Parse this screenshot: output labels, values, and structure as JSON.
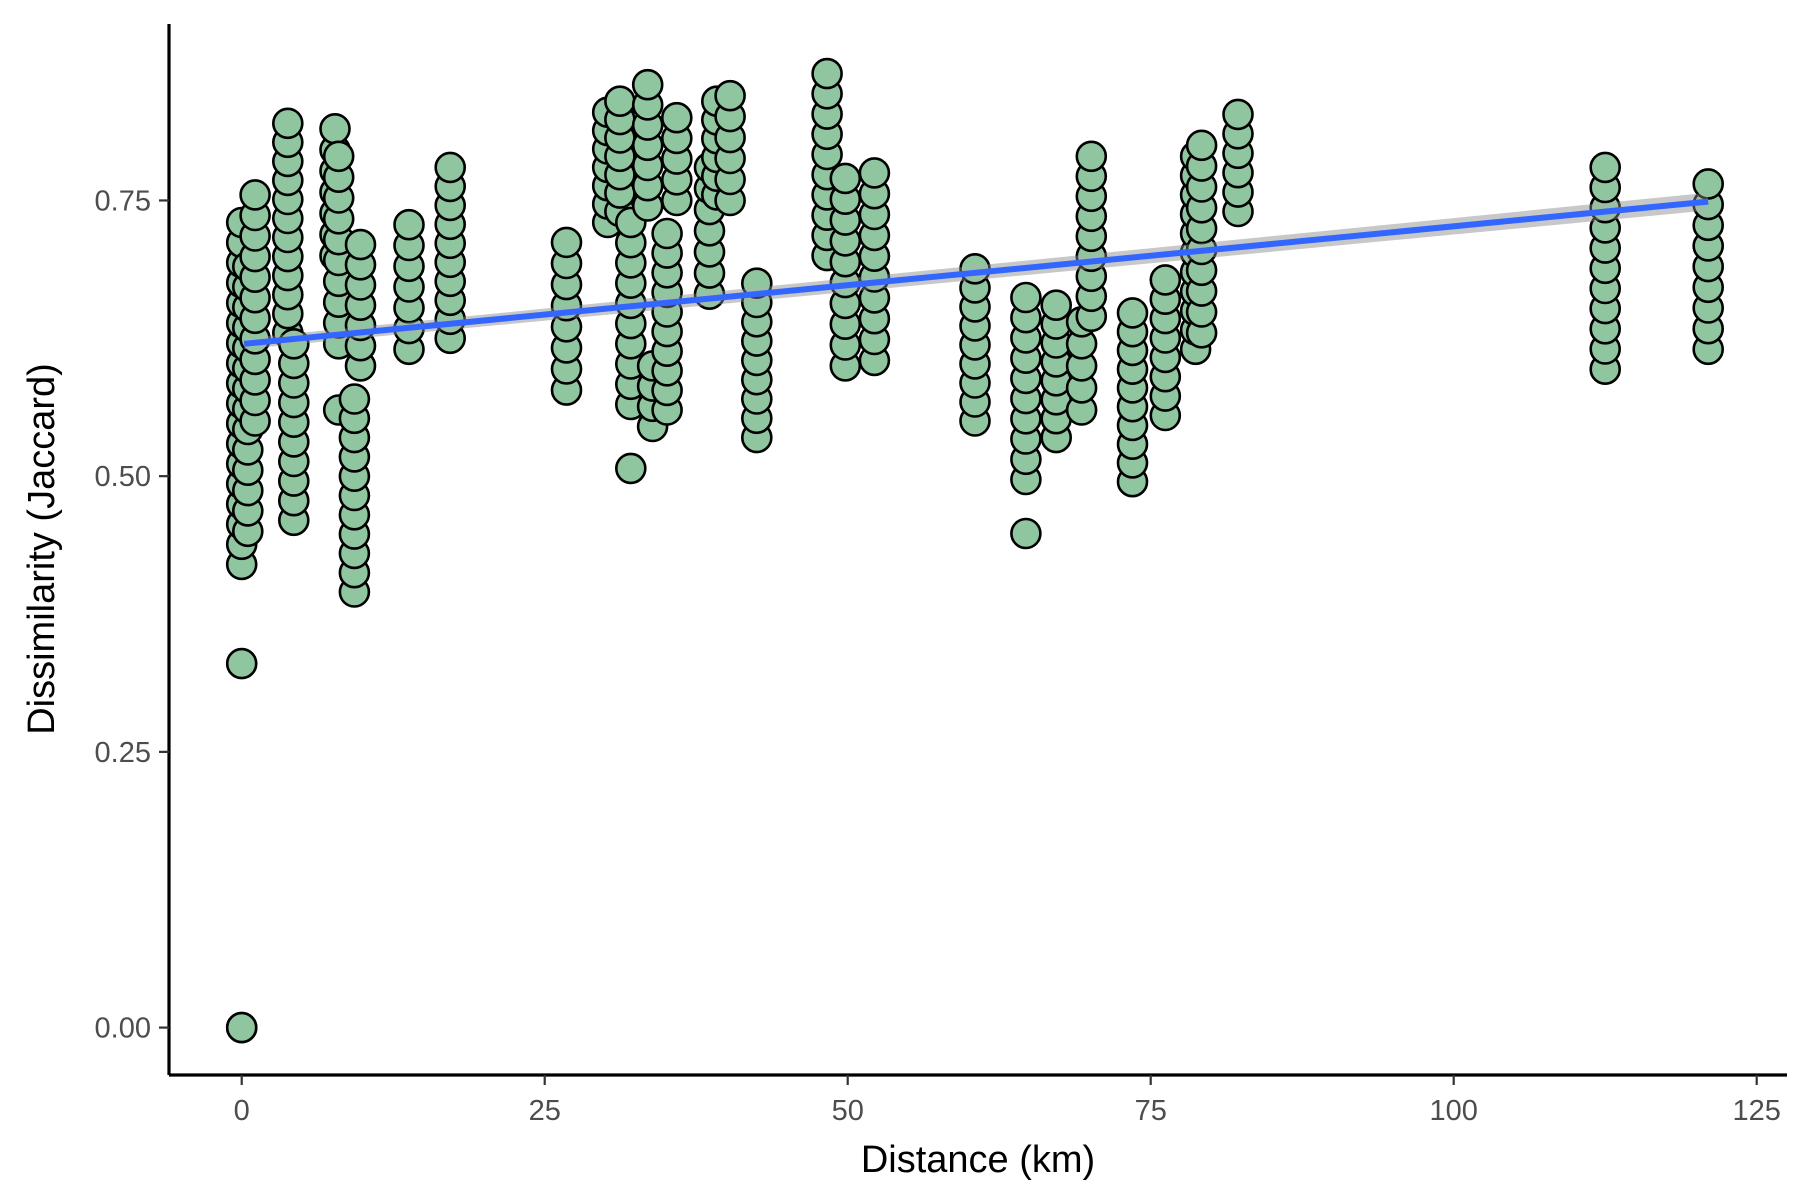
{
  "colors": {
    "point_fill": "#8fc59f",
    "point_stroke": "#000000",
    "trend_line": "#3366ff",
    "confidence_band": "#b3b3b3"
  },
  "chart_data": {
    "type": "scatter",
    "title": "",
    "xlabel": "Distance (km)",
    "ylabel": "Dissimilarity (Jaccard)",
    "xlim": [
      -6,
      127.5
    ],
    "ylim": [
      -0.043,
      0.91
    ],
    "xticks": [
      0,
      25,
      50,
      75,
      100,
      125
    ],
    "xtick_labels": [
      "0",
      "25",
      "50",
      "75",
      "100",
      "125"
    ],
    "yticks": [
      0,
      0.25,
      0.5,
      0.75
    ],
    "ytick_labels": [
      "0.00",
      "0.25",
      "0.50",
      "0.75"
    ],
    "grid": false,
    "legend": "none",
    "trend": {
      "method": "linear",
      "x": [
        0.2,
        121
      ],
      "y": [
        0.62,
        0.749
      ],
      "band_halfwidth": 0.008
    },
    "columns": [
      {
        "x": 0,
        "ymin": 0.42,
        "ymax": 0.73,
        "extra": [
          0.33,
          0.0,
          0.0
        ]
      },
      {
        "x": 0.5,
        "ymin": 0.45,
        "ymax": 0.69
      },
      {
        "x": 1.1,
        "ymin": 0.55,
        "ymax": 0.755
      },
      {
        "x": 3.8,
        "ymin": 0.63,
        "ymax": 0.82
      },
      {
        "x": 4.3,
        "ymin": 0.46,
        "ymax": 0.62
      },
      {
        "x": 7.7,
        "ymin": 0.7,
        "ymax": 0.815
      },
      {
        "x": 8.0,
        "ymin": 0.62,
        "ymax": 0.79,
        "extra": [
          0.56
        ]
      },
      {
        "x": 9.3,
        "ymin": 0.395,
        "ymax": 0.57
      },
      {
        "x": 9.8,
        "ymin": 0.6,
        "ymax": 0.71
      },
      {
        "x": 13.8,
        "ymin": 0.615,
        "ymax": 0.728
      },
      {
        "x": 17.2,
        "ymin": 0.625,
        "ymax": 0.78
      },
      {
        "x": 26.8,
        "ymin": 0.578,
        "ymax": 0.712
      },
      {
        "x": 30.2,
        "ymin": 0.73,
        "ymax": 0.83
      },
      {
        "x": 31.2,
        "ymin": 0.74,
        "ymax": 0.84
      },
      {
        "x": 32.1,
        "ymin": 0.565,
        "ymax": 0.73,
        "extra": [
          0.507
        ]
      },
      {
        "x": 33.5,
        "ymin": 0.745,
        "ymax": 0.855
      },
      {
        "x": 33.9,
        "ymin": 0.545,
        "ymax": 0.6
      },
      {
        "x": 35.1,
        "ymin": 0.56,
        "ymax": 0.72
      },
      {
        "x": 35.9,
        "ymin": 0.75,
        "ymax": 0.825
      },
      {
        "x": 38.6,
        "ymin": 0.665,
        "ymax": 0.78
      },
      {
        "x": 39.2,
        "ymin": 0.755,
        "ymax": 0.84
      },
      {
        "x": 40.3,
        "ymin": 0.75,
        "ymax": 0.845
      },
      {
        "x": 42.5,
        "ymin": 0.535,
        "ymax": 0.675
      },
      {
        "x": 48.3,
        "ymin": 0.7,
        "ymax": 0.865
      },
      {
        "x": 49.8,
        "ymin": 0.6,
        "ymax": 0.77
      },
      {
        "x": 52.2,
        "ymin": 0.605,
        "ymax": 0.775
      },
      {
        "x": 60.5,
        "ymin": 0.55,
        "ymax": 0.688
      },
      {
        "x": 64.7,
        "ymin": 0.497,
        "ymax": 0.662,
        "extra": [
          0.448
        ]
      },
      {
        "x": 67.2,
        "ymin": 0.535,
        "ymax": 0.655
      },
      {
        "x": 69.3,
        "ymin": 0.56,
        "ymax": 0.64
      },
      {
        "x": 70.1,
        "ymin": 0.645,
        "ymax": 0.79
      },
      {
        "x": 73.5,
        "ymin": 0.495,
        "ymax": 0.648
      },
      {
        "x": 76.2,
        "ymin": 0.555,
        "ymax": 0.678
      },
      {
        "x": 78.7,
        "ymin": 0.615,
        "ymax": 0.79
      },
      {
        "x": 79.2,
        "ymin": 0.63,
        "ymax": 0.8
      },
      {
        "x": 82.2,
        "ymin": 0.74,
        "ymax": 0.828
      },
      {
        "x": 112.5,
        "ymin": 0.597,
        "ymax": 0.78
      },
      {
        "x": 121,
        "ymin": 0.615,
        "ymax": 0.765
      }
    ]
  }
}
